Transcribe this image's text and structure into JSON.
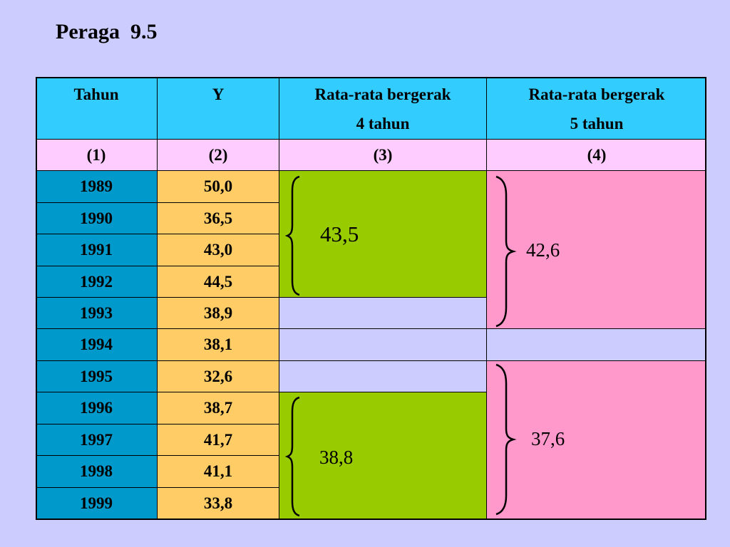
{
  "title": "Peraga  9.5",
  "header": {
    "col1": "Tahun",
    "col2": "Y",
    "col3_line1": "Rata-rata bergerak",
    "col3_line2": "4 tahun",
    "col4_line1": "Rata-rata bergerak",
    "col4_line2": "5 tahun"
  },
  "col_numbers": [
    "(1)",
    "(2)",
    "(3)",
    "(4)"
  ],
  "rows": [
    {
      "year": "1989",
      "y": "50,0"
    },
    {
      "year": "1990",
      "y": "36,5"
    },
    {
      "year": "1991",
      "y": "43,0"
    },
    {
      "year": "1992",
      "y": "44,5"
    },
    {
      "year": "1993",
      "y": "38,9"
    },
    {
      "year": "1994",
      "y": "38,1"
    },
    {
      "year": "1995",
      "y": "32,6"
    },
    {
      "year": "1996",
      "y": "38,7"
    },
    {
      "year": "1997",
      "y": "41,7"
    },
    {
      "year": "1998",
      "y": "41,1"
    },
    {
      "year": "1999",
      "y": "33,8"
    }
  ],
  "moving_avg_4": [
    {
      "years": "1989-1992",
      "value": "43,5"
    },
    {
      "years": "1996-1999",
      "value": "38,8"
    }
  ],
  "moving_avg_5": [
    {
      "years": "1989-1993",
      "value": "42,6"
    },
    {
      "years": "1995-1999",
      "value": "37,6"
    }
  ],
  "colors": {
    "background": "#ccccff",
    "header": "#33ccff",
    "subheader": "#ffccff",
    "year_column": "#0099cc",
    "y_column": "#ffcc66",
    "avg4_block": "#99cc00",
    "avg5_block": "#ff99cc"
  }
}
